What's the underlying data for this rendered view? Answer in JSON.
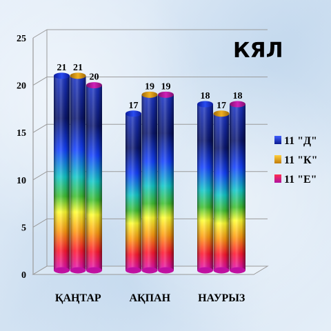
{
  "chart_data": {
    "type": "bar",
    "title": "КЯЛ",
    "categories": [
      "ҚАҢТАР",
      "АҚПАН",
      "НАУРЫЗ"
    ],
    "series": [
      {
        "name": "11 \"Д\"",
        "values": [
          21,
          17,
          18
        ]
      },
      {
        "name": "11 \"К\"",
        "values": [
          21,
          19,
          17
        ]
      },
      {
        "name": "11 \"Е\"",
        "values": [
          20,
          19,
          18
        ]
      }
    ],
    "ylim": [
      0,
      25
    ],
    "yticks": [
      0,
      5,
      10,
      15,
      20,
      25
    ],
    "grid": true,
    "legend_position": "right",
    "bar_style": "3d-cylinder-spectrum-gradient",
    "colors": {
      "series": [
        "#1a3cc8",
        "#d89a14",
        "#b0149a"
      ],
      "spectrum": [
        "#1030d0",
        "#0a1a80",
        "#1040ff",
        "#00d0d0",
        "#30c030",
        "#ffff20",
        "#ff8010",
        "#ff1020",
        "#e010c0"
      ],
      "gridline": "#9a9a9a"
    }
  }
}
